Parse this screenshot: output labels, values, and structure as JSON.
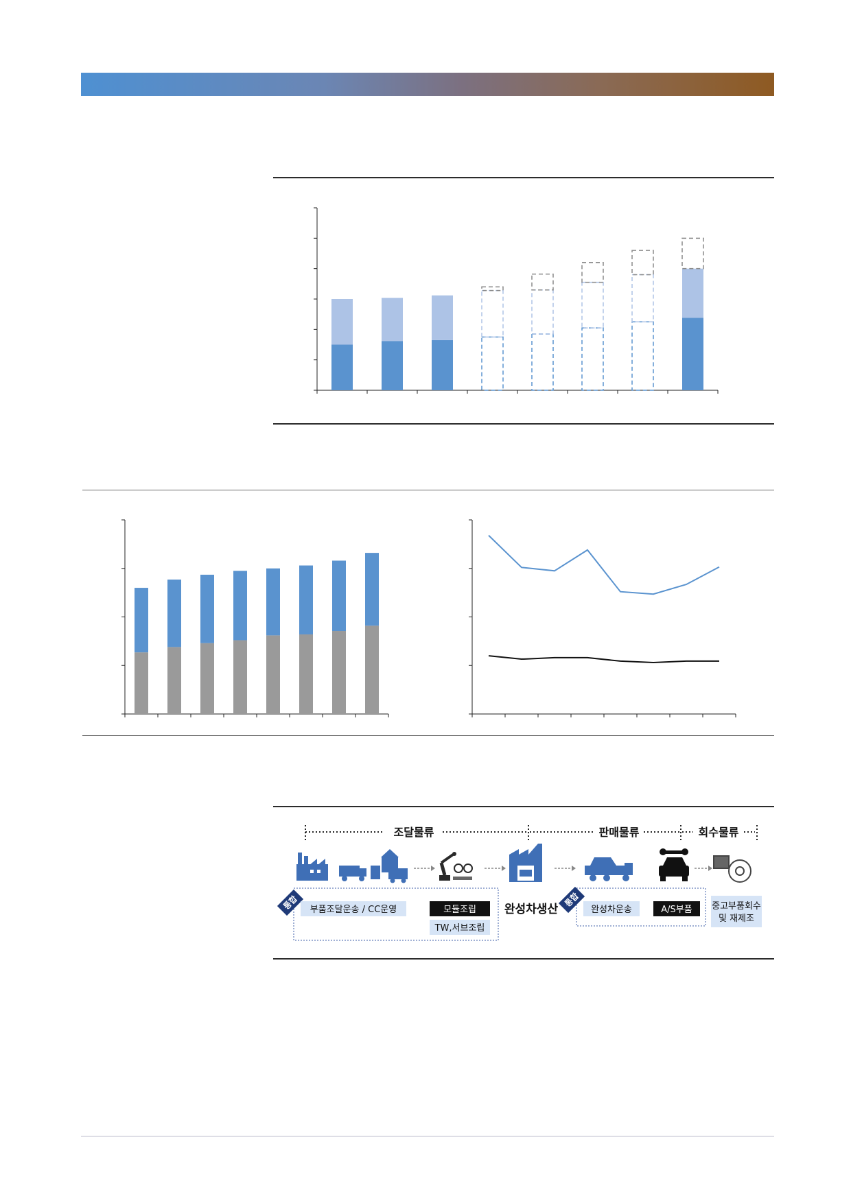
{
  "colors": {
    "bar_dark_blue": "#5a93cf",
    "bar_light_blue": "#adc3e6",
    "bar_grey": "#9a9a9a",
    "line_blue": "#5a93cf",
    "line_black": "#111111",
    "dashed_grey": "#8a8a8a",
    "navy_tag": "#1f3a78",
    "box_fill": "#d6e4f6"
  },
  "chart_data": [
    {
      "type": "bar",
      "stacked": true,
      "ylim": [
        0,
        6
      ],
      "categories_count": 8,
      "series": [
        {
          "values": [
            1.5,
            1.62,
            1.65,
            null,
            null,
            null,
            null,
            2.38
          ]
        },
        {
          "values": [
            1.5,
            1.42,
            1.47,
            null,
            null,
            null,
            null,
            1.62
          ]
        }
      ],
      "projected_dashed": [
        {
          "lower": 1.75,
          "upper": 3.28,
          "top": 3.4
        },
        {
          "lower": 1.85,
          "upper": 3.3,
          "top": 3.82
        },
        {
          "lower": 2.05,
          "upper": 3.55,
          "top": 4.2
        },
        {
          "lower": 2.25,
          "upper": 3.8,
          "top": 4.6
        },
        {
          "lower": 0,
          "upper": 0,
          "top": 5.0
        }
      ],
      "grid": false
    },
    {
      "type": "bar",
      "stacked": true,
      "ylim": [
        0,
        4
      ],
      "categories_count": 8,
      "series": [
        {
          "values": [
            1.27,
            1.38,
            1.46,
            1.52,
            1.62,
            1.64,
            1.71,
            1.82
          ]
        },
        {
          "values": [
            1.33,
            1.39,
            1.41,
            1.43,
            1.38,
            1.42,
            1.45,
            1.5
          ]
        }
      ],
      "grid": false
    },
    {
      "type": "line",
      "ylim": [
        0,
        4
      ],
      "categories_count": 8,
      "series": [
        {
          "values": [
            3.68,
            3.02,
            2.95,
            3.38,
            2.52,
            2.47,
            2.67,
            3.03
          ]
        },
        {
          "values": [
            1.2,
            1.13,
            1.16,
            1.16,
            1.09,
            1.06,
            1.09,
            1.09
          ]
        }
      ],
      "grid": false
    }
  ],
  "flow": {
    "segments": [
      "조달물류",
      "판매물류",
      "회수물류"
    ],
    "tag_label": "통합",
    "procure_box": "부품조달운송 / CC운영",
    "module_box": "모듈조립",
    "tw_box": "TW,서브조립",
    "finished_label": "완성차생산",
    "transport_box": "완성차운송",
    "as_box": "A/S부품",
    "recycle_line1": "중고부품회수",
    "recycle_line2": "및 재제조"
  }
}
